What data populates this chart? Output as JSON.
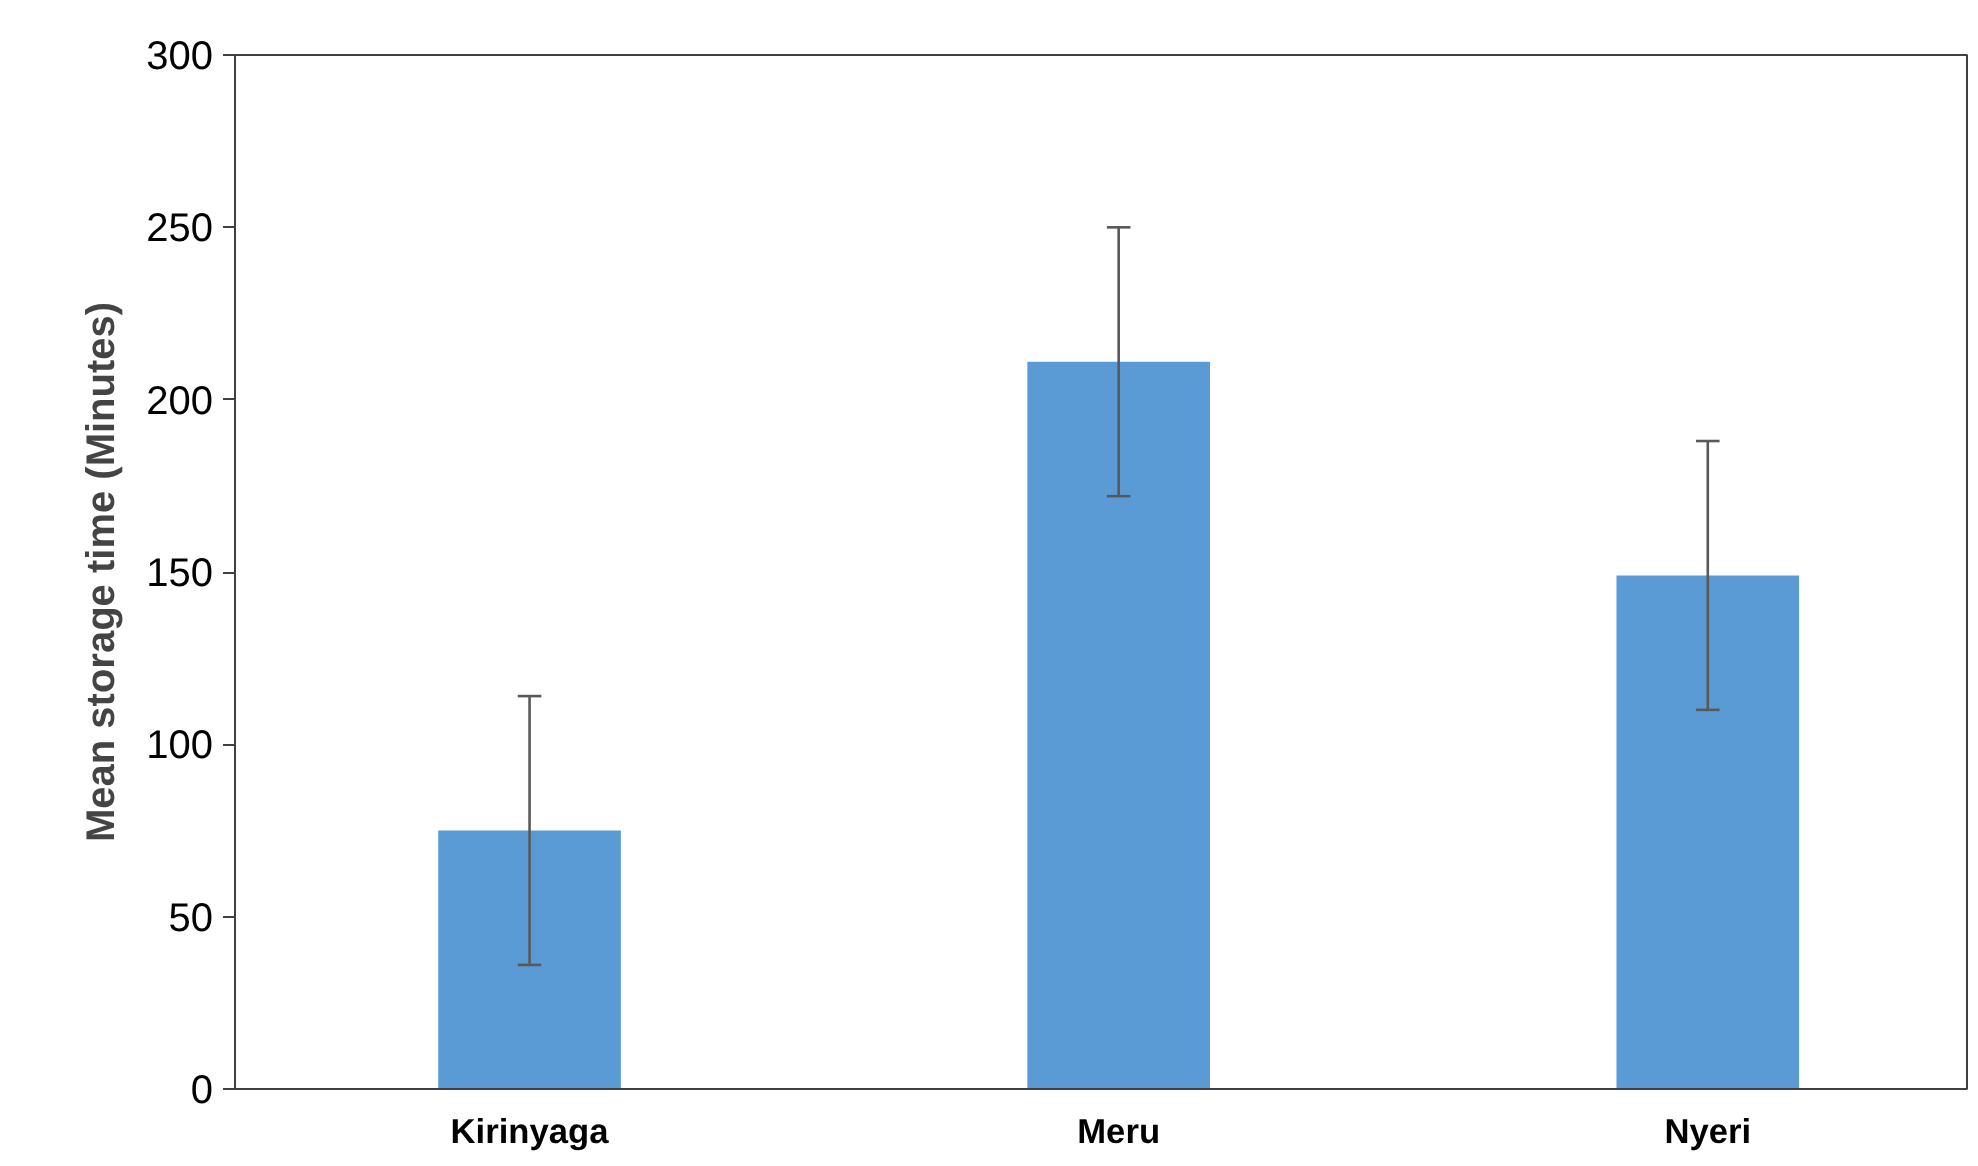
{
  "chart_data": {
    "type": "bar",
    "ylabel": "Mean storage time (Minutes)",
    "categories": [
      "Kirinyaga",
      "Meru",
      "Nyeri"
    ],
    "values": [
      75,
      211,
      149
    ],
    "errors": [
      39,
      39,
      39
    ],
    "color": "#5b9bd5",
    "ylim": [
      0,
      300
    ],
    "yticks": [
      0,
      50,
      100,
      150,
      200,
      250,
      300
    ],
    "grid": false
  }
}
